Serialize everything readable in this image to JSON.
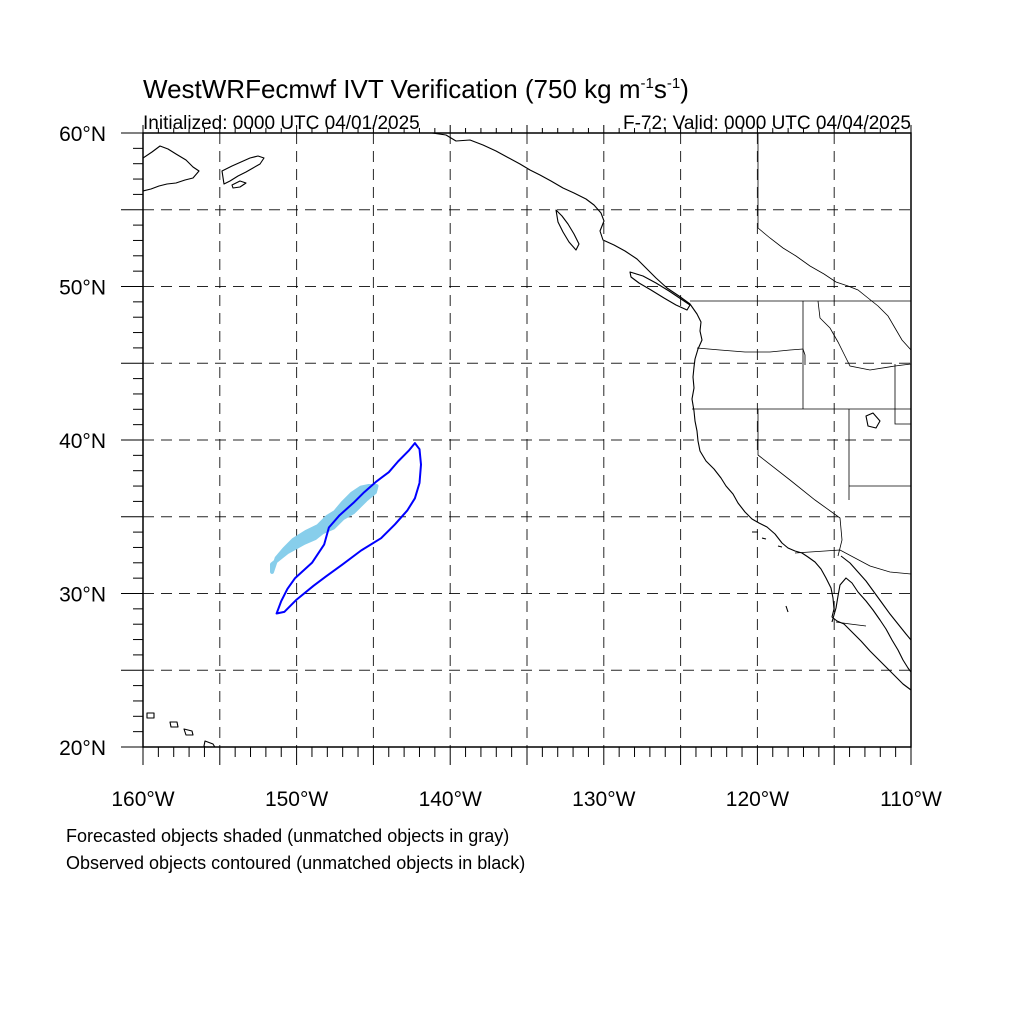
{
  "title": {
    "main": "WestWRFecmwf IVT Verification (750 kg m",
    "sup1": "-1",
    "mid": "s",
    "sup2": "-1",
    "end": ")"
  },
  "subtitle_left": "Initialized: 0000 UTC 04/01/2025",
  "subtitle_right": "F-72: Valid: 0000 UTC 04/04/2025",
  "map": {
    "lon_range": [
      -160,
      -110
    ],
    "lat_range": [
      20,
      60
    ],
    "lon_ticks": [
      {
        "value": -160,
        "label": "160°W"
      },
      {
        "value": -150,
        "label": "150°W"
      },
      {
        "value": -140,
        "label": "140°W"
      },
      {
        "value": -130,
        "label": "130°W"
      },
      {
        "value": -120,
        "label": "120°W"
      },
      {
        "value": -110,
        "label": "110°W"
      }
    ],
    "lat_ticks": [
      {
        "value": 20,
        "label": "20°N"
      },
      {
        "value": 30,
        "label": "30°N"
      },
      {
        "value": 40,
        "label": "40°N"
      },
      {
        "value": 50,
        "label": "50°N"
      },
      {
        "value": 60,
        "label": "60°N"
      }
    ],
    "grid_lon_step": 5,
    "grid_lat_step": 5,
    "colors": {
      "forecast_matched": "#87ceeb",
      "observed_matched": "#0000ff",
      "coastline": "#000000"
    }
  },
  "forecast_object": {
    "polygon": [
      [
        -151.6,
        31.4
      ],
      [
        -151.6,
        31.9
      ],
      [
        -150.6,
        32.7
      ],
      [
        -149.5,
        33.3
      ],
      [
        -148.8,
        33.6
      ],
      [
        -148.3,
        34.0
      ],
      [
        -147.6,
        34.3
      ],
      [
        -147.0,
        34.9
      ],
      [
        -146.3,
        35.3
      ],
      [
        -145.9,
        35.7
      ],
      [
        -145.5,
        36.1
      ],
      [
        -144.9,
        36.6
      ],
      [
        -144.8,
        37.0
      ],
      [
        -145.3,
        37.0
      ],
      [
        -145.8,
        36.9
      ],
      [
        -146.4,
        36.5
      ],
      [
        -147.0,
        35.9
      ],
      [
        -147.5,
        35.3
      ],
      [
        -148.0,
        35.0
      ],
      [
        -148.6,
        34.4
      ],
      [
        -149.4,
        34.0
      ],
      [
        -150.2,
        33.5
      ],
      [
        -150.8,
        32.9
      ],
      [
        -151.3,
        32.3
      ]
    ]
  },
  "observed_object": {
    "polygon": [
      [
        -151.3,
        28.7
      ],
      [
        -150.8,
        28.8
      ],
      [
        -150.0,
        29.6
      ],
      [
        -148.9,
        30.5
      ],
      [
        -148.1,
        31.1
      ],
      [
        -147.0,
        31.9
      ],
      [
        -145.8,
        32.8
      ],
      [
        -144.5,
        33.6
      ],
      [
        -143.6,
        34.5
      ],
      [
        -142.8,
        35.4
      ],
      [
        -142.3,
        36.2
      ],
      [
        -142.0,
        37.2
      ],
      [
        -141.9,
        38.4
      ],
      [
        -142.0,
        39.4
      ],
      [
        -142.3,
        39.8
      ],
      [
        -142.7,
        39.3
      ],
      [
        -143.4,
        38.6
      ],
      [
        -144.0,
        37.9
      ],
      [
        -144.8,
        37.3
      ],
      [
        -145.6,
        36.6
      ],
      [
        -146.3,
        35.9
      ],
      [
        -147.2,
        35.1
      ],
      [
        -147.9,
        34.3
      ],
      [
        -148.2,
        33.2
      ],
      [
        -149.0,
        32.0
      ],
      [
        -150.1,
        31.0
      ],
      [
        -150.6,
        30.3
      ],
      [
        -151.0,
        29.5
      ]
    ]
  },
  "footer": [
    "Forecasted objects shaded (unmatched objects in gray)",
    "Observed objects contoured (unmatched objects in black)"
  ]
}
